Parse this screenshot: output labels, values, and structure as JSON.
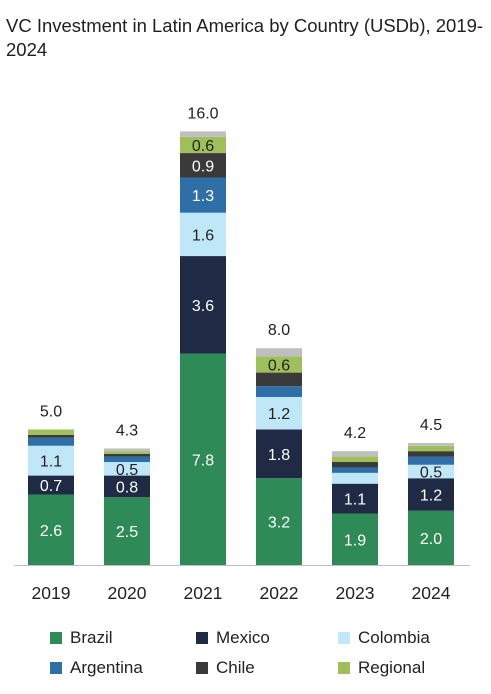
{
  "title": "VC Investment in Latin America by Country (USDb), 2019-2024",
  "chart_data": {
    "type": "bar",
    "stacked": true,
    "title": "VC Investment in Latin America by Country (USDb), 2019-2024",
    "categories": [
      "2019",
      "2020",
      "2021",
      "2022",
      "2023",
      "2024"
    ],
    "totals": [
      "5.0",
      "4.3",
      "16.0",
      "8.0",
      "4.2",
      "4.5"
    ],
    "series": [
      {
        "name": "Brazil",
        "color": "#2e8b57",
        "values": [
          2.6,
          2.5,
          7.8,
          3.2,
          1.9,
          2.0
        ],
        "labels": [
          "2.6",
          "2.5",
          "7.8",
          "3.2",
          "1.9",
          "2.0"
        ],
        "label_color": "#ffffff"
      },
      {
        "name": "Mexico",
        "color": "#1f2a44",
        "values": [
          0.7,
          0.8,
          3.6,
          1.8,
          1.1,
          1.2
        ],
        "labels": [
          "0.7",
          "0.8",
          "3.6",
          "1.8",
          "1.1",
          "1.2"
        ],
        "label_color": "#ffffff"
      },
      {
        "name": "Colombia",
        "color": "#bfe7f7",
        "values": [
          1.1,
          0.5,
          1.6,
          1.2,
          0.4,
          0.5
        ],
        "labels": [
          "1.1",
          "0.5",
          "1.6",
          "1.2",
          "",
          "0.5"
        ],
        "label_color": "#222222"
      },
      {
        "name": "Argentina",
        "color": "#2d6fa6",
        "values": [
          0.3,
          0.2,
          1.3,
          0.4,
          0.2,
          0.3
        ],
        "labels": [
          "",
          "",
          "1.3",
          "",
          "",
          ""
        ],
        "label_color": "#ffffff"
      },
      {
        "name": "Chile",
        "color": "#3a3a3a",
        "values": [
          0.1,
          0.1,
          0.9,
          0.5,
          0.2,
          0.2
        ],
        "labels": [
          "",
          "",
          "0.9",
          "",
          "",
          ""
        ],
        "label_color": "#ffffff"
      },
      {
        "name": "Regional",
        "color": "#9fbf5a",
        "values": [
          0.2,
          0.1,
          0.6,
          0.6,
          0.2,
          0.2
        ],
        "labels": [
          "",
          "",
          "0.6",
          "0.6",
          "",
          ""
        ],
        "label_color": "#222222"
      },
      {
        "name": "",
        "color": "#bfbfbf",
        "values": [
          0.0,
          0.1,
          0.2,
          0.3,
          0.2,
          0.1
        ],
        "labels": [
          "",
          "",
          "",
          "",
          "",
          ""
        ],
        "label_color": "#222222"
      }
    ],
    "ylim": [
      0,
      16.0
    ],
    "grid": false,
    "legend_position": "bottom"
  },
  "legend": [
    {
      "name": "Brazil",
      "color": "#2e8b57"
    },
    {
      "name": "Mexico",
      "color": "#1f2a44"
    },
    {
      "name": "Colombia",
      "color": "#bfe7f7"
    },
    {
      "name": "Argentina",
      "color": "#2d6fa6"
    },
    {
      "name": "Chile",
      "color": "#3a3a3a"
    },
    {
      "name": "Regional",
      "color": "#9fbf5a"
    }
  ]
}
